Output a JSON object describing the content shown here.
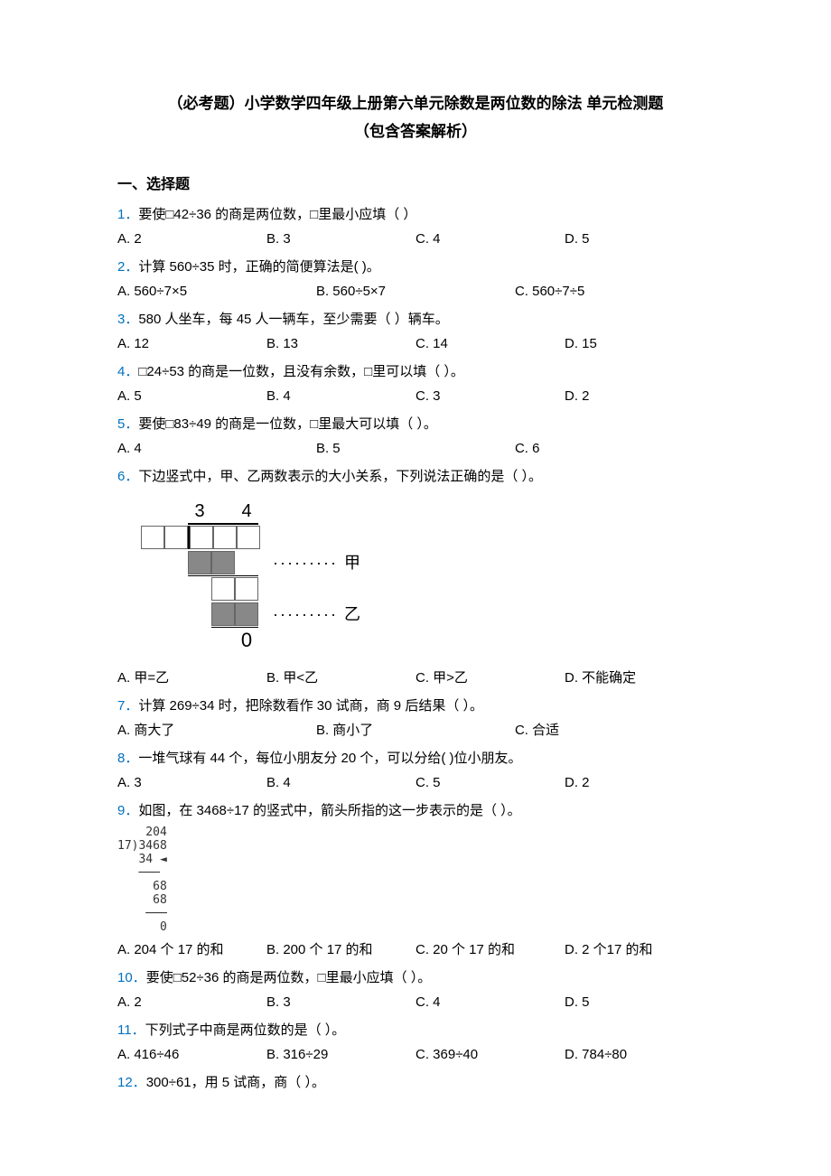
{
  "title_line1": "（必考题）小学数学四年级上册第六单元除数是两位数的除法 单元检测题",
  "title_line2": "（包含答案解析）",
  "section1": "一、选择题",
  "questions": [
    {
      "num": "1．",
      "text": "要使□42÷36 的商是两位数，□里最小应填（  ）",
      "opts": [
        "A. 2",
        "B. 3",
        "C. 4",
        "D. 5"
      ],
      "cols": 4
    },
    {
      "num": "2．",
      "text": "计算 560÷35 时，正确的简便算法是(   )。",
      "opts": [
        "A. 560÷7×5",
        "B. 560÷5×7",
        "C. 560÷7÷5"
      ],
      "cols": 3
    },
    {
      "num": "3．",
      "text": "580 人坐车，每 45 人一辆车，至少需要（  ）辆车。",
      "opts": [
        "A. 12",
        "B. 13",
        "C. 14",
        "D. 15"
      ],
      "cols": 4
    },
    {
      "num": "4．",
      "text": "□24÷53 的商是一位数，且没有余数，□里可以填（   ）。",
      "opts": [
        "A. 5",
        "B. 4",
        "C. 3",
        "D. 2"
      ],
      "cols": 4
    },
    {
      "num": "5．",
      "text": "要使□83÷49 的商是一位数，□里最大可以填（   ）。",
      "opts": [
        "A. 4",
        "B. 5",
        "C. 6"
      ],
      "cols": 3
    },
    {
      "num": "6．",
      "text": "下边竖式中，甲、乙两数表示的大小关系，下列说法正确的是（   ）。",
      "opts": [
        "A. 甲=乙",
        "B. 甲<乙",
        "C. 甲>乙",
        "D. 不能确定"
      ],
      "cols": 4,
      "has_longdiv_img": true
    },
    {
      "num": "7．",
      "text": "计算 269÷34 时，把除数看作 30 试商，商 9 后结果（   ）。",
      "opts": [
        "A. 商大了",
        "B. 商小了",
        "C. 合适"
      ],
      "cols": 3
    },
    {
      "num": "8．",
      "text": "一堆气球有 44 个，每位小朋友分 20 个，可以分给(        )位小朋友。",
      "opts": [
        "A. 3",
        "B. 4",
        "C. 5",
        "D. 2"
      ],
      "cols": 4
    },
    {
      "num": "9．",
      "text": "如图，在 3468÷17 的竖式中，箭头所指的这一步表示的是（    ）。",
      "opts": [
        "A. 204 个 17 的和",
        "B. 200 个 17 的和",
        "C. 20 个 17 的和",
        "D. 2 个17 的和"
      ],
      "cols": 4,
      "has_small_div": true
    },
    {
      "num": "10．",
      "text": "要使□52÷36 的商是两位数，□里最小应填（    ）。",
      "opts": [
        "A. 2",
        "B. 3",
        "C. 4",
        "D. 5"
      ],
      "cols": 4
    },
    {
      "num": "11．",
      "text": "下列式子中商是两位数的是（   ）。",
      "opts": [
        "A. 416÷46",
        "B. 316÷29",
        "C. 369÷40",
        "D. 784÷80"
      ],
      "cols": 4
    },
    {
      "num": "12．",
      "text": "300÷61，用 5 试商，商（   ）。",
      "opts": [],
      "cols": 0
    }
  ],
  "longdiv": {
    "quotient": [
      "3",
      "",
      "4"
    ],
    "label_jia": "甲",
    "label_yi": "乙",
    "zero": "0",
    "dots": "·········"
  },
  "smalldiv": {
    "line1": "    204",
    "line2": "17)3468",
    "line3": "   34 ◄",
    "line4": "   ───",
    "line5": "     68",
    "line6": "     68",
    "line7": "    ───",
    "line8": "      0"
  },
  "colors": {
    "qnum": "#0070c0",
    "text": "#000000",
    "bg": "#ffffff"
  }
}
